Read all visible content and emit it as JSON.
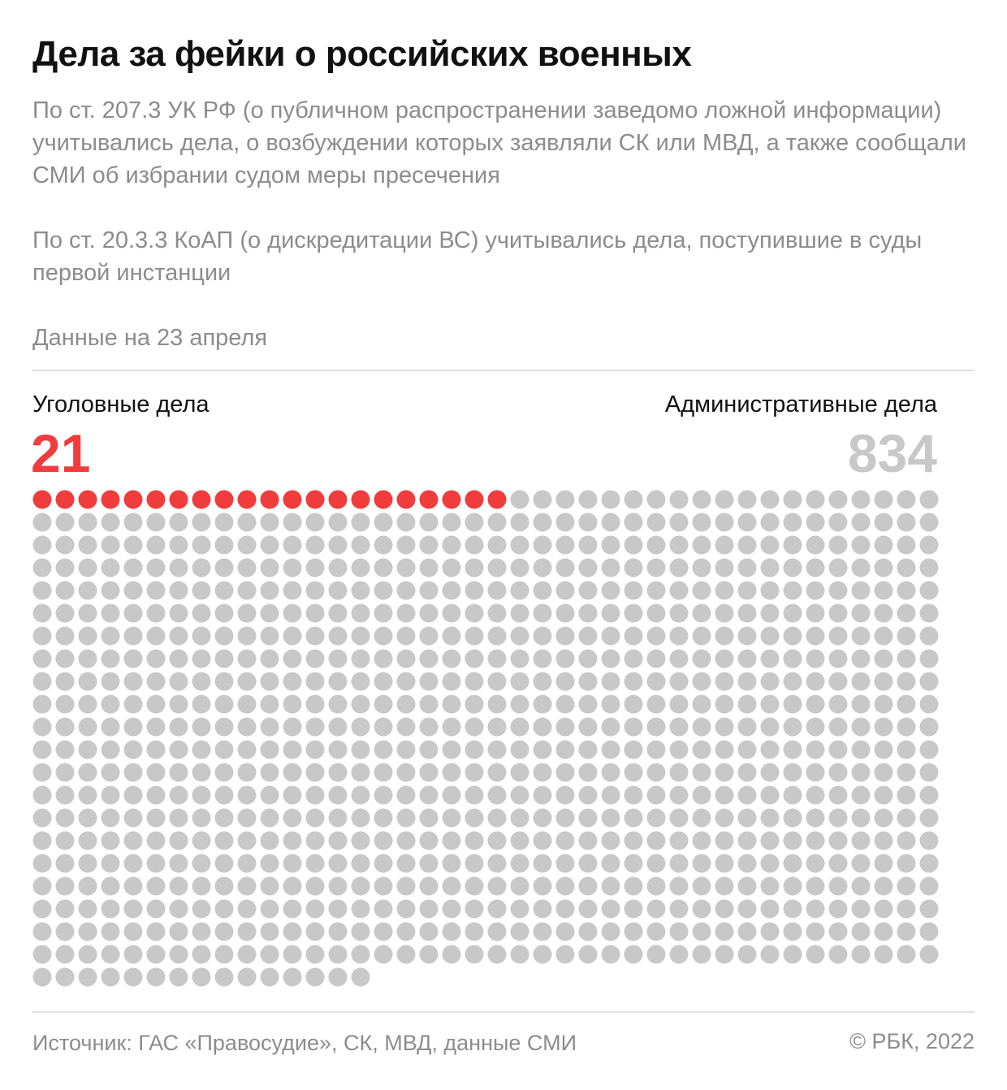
{
  "title": "Дела за фейки о российских военных",
  "description_1": "По ст. 207.3 УК РФ (о публичном распространении заведомо ложной информации) учитывались дела, о возбуждении которых заявляли СК или МВД, а также сообщали СМИ об избрании судом меры пресечения",
  "description_2": "По ст. 20.3.3 КоАП (о дискредитации ВС) учитывались дела, поступившие в суды первой инстанции",
  "as_of": "Данные на 23 апреля",
  "source": "Источник: ГАС «Правосудие», СК, МВД, данные СМИ",
  "copyright": "© РБК, 2022",
  "chart_data": {
    "type": "waffle",
    "units_per_dot": 1,
    "dots_per_row": 40,
    "series": [
      {
        "name": "Уголовные дела",
        "value": 21,
        "value_label": "21",
        "color": "#f03c3c"
      },
      {
        "name": "Административные дела",
        "value": 834,
        "value_label": "834",
        "color": "#c8c8c8"
      }
    ]
  }
}
